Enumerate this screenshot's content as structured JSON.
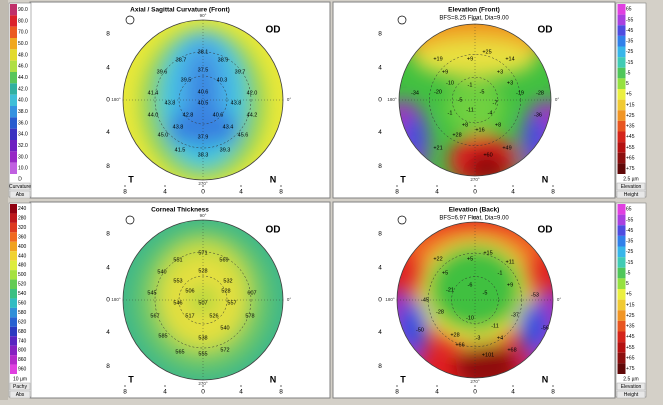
{
  "panels": [
    {
      "title": "Axial / Sagittal Curvature (Front)",
      "eye": "OD",
      "scale": {
        "labels": [
          "90.0",
          "80.0",
          "70.0",
          "50.0",
          "48.0",
          "46.0",
          "44.0",
          "42.0",
          "40.0",
          "38.0",
          "36.0",
          "34.0",
          "32.0",
          "30.0",
          "10.0"
        ],
        "unit": "D",
        "name": "Curvature",
        "mode": "Abs"
      },
      "map_values": [
        "38.1",
        "38.7",
        "38.9",
        "37.5",
        "39.6",
        "39.7",
        "39.5",
        "40.3",
        "40.6",
        "41.4",
        "42.0",
        "43.8",
        "40.5",
        "43.8",
        "44.0",
        "42.8",
        "40.6",
        "44.2",
        "43.8",
        "43.4",
        "45.0",
        "45.6",
        "37.9",
        "41.5",
        "39.3",
        "38.3"
      ],
      "x_ticks": [
        "8",
        "4",
        "0",
        "4",
        "8"
      ],
      "y_ticks": [
        "8",
        "4",
        "0",
        "4",
        "8"
      ],
      "angles": [
        "90°",
        "270°",
        "180°",
        "0°"
      ],
      "temporal": "T",
      "nasal": "N"
    },
    {
      "title": "Elevation (Front)",
      "subtitle": "BFS=8.25 Float, Dia=9.00",
      "eye": "OD",
      "scale": {
        "labels": [
          "65",
          "-55",
          "-45",
          "-35",
          "-25",
          "-15",
          "-5",
          "5",
          "+5",
          "+15",
          "+25",
          "+35",
          "+45",
          "+55",
          "+65",
          "+75"
        ],
        "unit": "2.5 µm",
        "name": "Elevation",
        "mode": "Height"
      },
      "map_values": [
        "+25",
        "+19",
        "+9",
        "+14",
        "+9",
        "+3",
        "-10",
        "-20",
        "-1",
        "+3",
        "-5",
        "-34",
        "-19",
        "-5",
        "-7",
        "-11",
        "-28",
        "-1",
        "-4",
        "+8",
        "+8",
        "-36",
        "+16",
        "+28",
        "+21",
        "+49",
        "+60"
      ],
      "x_ticks": [
        "8",
        "4",
        "0",
        "4",
        "8"
      ],
      "y_ticks": [
        "8",
        "4",
        "0",
        "4",
        "8"
      ],
      "angles": [
        "90°",
        "270°",
        "180°",
        "0°"
      ],
      "temporal": "T",
      "nasal": "N"
    },
    {
      "title": "Corneal Thickness",
      "eye": "OD",
      "scale": {
        "labels": [
          "240",
          "280",
          "320",
          "360",
          "400",
          "440",
          "480",
          "500",
          "520",
          "540",
          "560",
          "580",
          "620",
          "680",
          "740",
          "800",
          "860",
          "960"
        ],
        "unit": "10 µm",
        "name": "Pachy",
        "mode": "Abs"
      },
      "map_values": [
        "571",
        "551",
        "569",
        "528",
        "540",
        "553",
        "532",
        "545",
        "506",
        "528",
        "607",
        "546",
        "507",
        "557",
        "567",
        "517",
        "526",
        "578",
        "540",
        "585",
        "538",
        "565",
        "555",
        "572"
      ],
      "x_ticks": [
        "8",
        "4",
        "0",
        "4",
        "8"
      ],
      "y_ticks": [
        "8",
        "4",
        "0",
        "4",
        "8"
      ],
      "angles": [
        "90°",
        "270°",
        "180°",
        "0°"
      ],
      "temporal": "T",
      "nasal": "N"
    },
    {
      "title": "Elevation (Back)",
      "subtitle": "BFS=6.97 Float, Dia=9.00",
      "eye": "OD",
      "scale": {
        "labels": [
          "65",
          "-55",
          "-45",
          "-35",
          "-25",
          "-15",
          "-5",
          "5",
          "+5",
          "+15",
          "+25",
          "+35",
          "+45",
          "+55",
          "+65",
          "+75"
        ],
        "unit": "2.5 µm",
        "name": "Elevation",
        "mode": "Height"
      },
      "map_values": [
        "+15",
        "+22",
        "+5",
        "+11",
        "+5",
        "-1",
        "-6",
        "+9",
        "-21",
        "-5",
        "-53",
        "-45",
        "-28",
        "-10",
        "-50",
        "-56",
        "-11",
        "-37",
        "+28",
        "-3",
        "+4",
        "+66",
        "+101",
        "+68"
      ],
      "x_ticks": [
        "8",
        "4",
        "0",
        "4",
        "8"
      ],
      "y_ticks": [
        "8",
        "4",
        "0",
        "4",
        "8"
      ],
      "angles": [
        "90°",
        "270°",
        "180°",
        "0°"
      ],
      "temporal": "T",
      "nasal": "N"
    }
  ]
}
